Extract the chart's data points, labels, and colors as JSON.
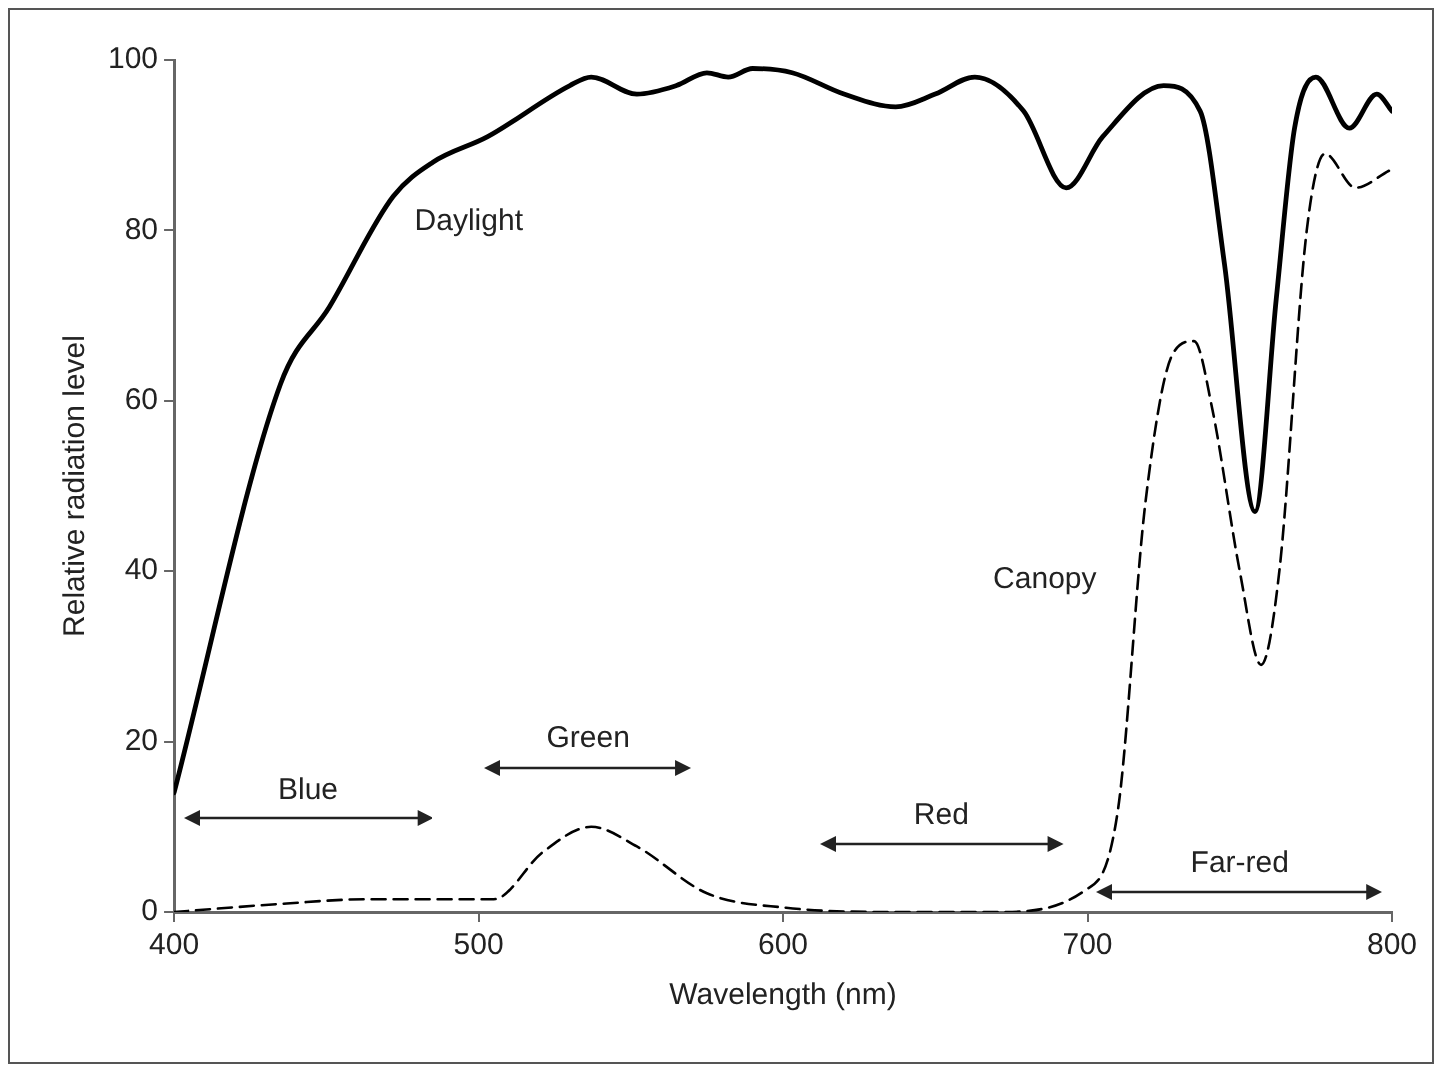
{
  "chart_data": {
    "type": "line",
    "xlabel": "Wavelength (nm)",
    "ylabel": "Relative radiation level",
    "xlim": [
      400,
      800
    ],
    "xticks": [
      400,
      500,
      600,
      700,
      800
    ],
    "ylim": [
      0,
      100
    ],
    "yticks": [
      0,
      20,
      40,
      60,
      80,
      100
    ],
    "grid": false,
    "legend": false,
    "marker": "none",
    "series": [
      {
        "name": "Daylight",
        "color": "#000000",
        "line_style": "solid",
        "x": [
          400,
          435,
          451,
          472,
          485,
          503,
          530,
          537,
          552,
          565,
          575,
          582,
          590,
          603,
          620,
          637,
          650,
          663,
          679,
          693,
          705,
          725,
          737,
          745,
          755,
          762,
          768,
          775,
          786,
          795,
          800
        ],
        "values": [
          14,
          62,
          71,
          84,
          88,
          91,
          97,
          98,
          96,
          97,
          98.5,
          98,
          99,
          98.5,
          96,
          94.5,
          96,
          98,
          94,
          85,
          91,
          97,
          94,
          76,
          47,
          72,
          92,
          98,
          92,
          96,
          94
        ]
      },
      {
        "name": "Canopy",
        "color": "#000000",
        "line_style": "dashed",
        "x": [
          400,
          437,
          463,
          505,
          521,
          537,
          552,
          575,
          601,
          637,
          670,
          699,
          710,
          719,
          728,
          735,
          741,
          750,
          757,
          763,
          772,
          778,
          788,
          799
        ],
        "values": [
          0,
          1,
          1.5,
          1.5,
          7,
          10,
          7.7,
          2.2,
          0.5,
          0,
          0,
          2.5,
          12,
          48,
          65.5,
          67,
          59,
          40,
          29,
          40,
          80,
          89,
          85,
          87
        ]
      }
    ],
    "annotations": [
      "Blue",
      "Green",
      "Red",
      "Far-red"
    ]
  }
}
